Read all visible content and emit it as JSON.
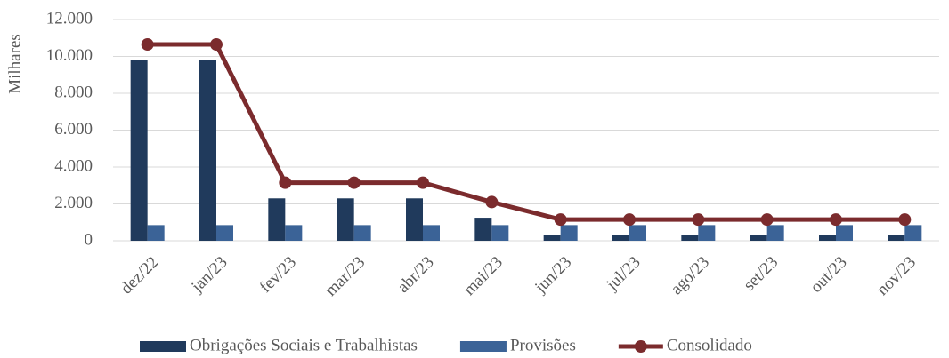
{
  "chart_data": {
    "type": "bar",
    "y_label": "Milhares",
    "categories": [
      "dez/22",
      "jan/23",
      "fev/23",
      "mar/23",
      "abr/23",
      "mai/23",
      "jun/23",
      "jul/23",
      "ago/23",
      "set/23",
      "out/23",
      "nov/23"
    ],
    "series": [
      {
        "name": "Obrigações Sociais e Trabalhistas",
        "color": "#203a5c",
        "type": "bar",
        "values": [
          9800,
          9800,
          2300,
          2300,
          2300,
          1250,
          300,
          300,
          300,
          300,
          300,
          300
        ]
      },
      {
        "name": "Provisões",
        "color": "#3b6397",
        "type": "bar",
        "values": [
          850,
          850,
          850,
          850,
          850,
          850,
          850,
          850,
          850,
          850,
          850,
          850
        ]
      },
      {
        "name": "Consolidado",
        "color": "#7b2b2d",
        "type": "line",
        "values": [
          10650,
          10650,
          3150,
          3150,
          3150,
          2100,
          1150,
          1150,
          1150,
          1150,
          1150,
          1150
        ]
      }
    ],
    "ylim": [
      0,
      12000
    ],
    "yticks": [
      0,
      {
        "value": 2000,
        "label": "2.000"
      },
      {
        "value": 4000,
        "label": "4.000"
      },
      {
        "value": 6000,
        "label": "6.000"
      },
      {
        "value": 8000,
        "label": "8.000"
      },
      {
        "value": 10000,
        "label": "10.000"
      },
      {
        "value": 12000,
        "label": "12.000"
      }
    ],
    "grid": true,
    "legend": "bottom"
  }
}
